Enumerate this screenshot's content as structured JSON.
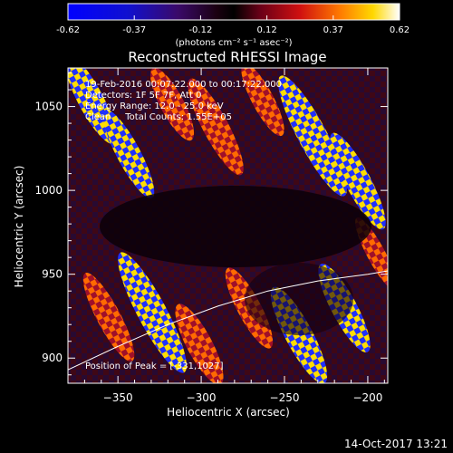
{
  "chart_data": {
    "type": "heatmap",
    "title": "Reconstructed RHESSI Image",
    "xlabel": "Heliocentric X (arcsec)",
    "ylabel": "Heliocentric Y (arcsec)",
    "xlim": [
      -380,
      -188
    ],
    "ylim": [
      885,
      1073
    ],
    "xticks": [
      -350,
      -300,
      -250,
      -200
    ],
    "yticks": [
      900,
      950,
      1000,
      1050
    ],
    "colorbar": {
      "ticks": [
        "-0.62",
        "-0.37",
        "-0.12",
        "0.12",
        "0.37",
        "0.62"
      ],
      "min": -0.62,
      "max": 0.62,
      "unit_label": "(photons cm⁻² s⁻¹ asec⁻²)"
    },
    "annotations": [
      "19-Feb-2016 00:07:22.000 to 00:17:22.000",
      "Detectors: 1F 5F 7F, Att 0",
      "Energy Range: 12.0 - 25.0 keV",
      "Clean     Total Counts: 1.55E+05"
    ],
    "peak_label": "Position of Peak = [-331,1027]",
    "limb_curve": {
      "x": [
        -380,
        -350,
        -320,
        -290,
        -260,
        -230,
        -200,
        -188
      ],
      "y": [
        893,
        907,
        920,
        931,
        940,
        946,
        950,
        952
      ]
    }
  },
  "footer": {
    "timestamp": "14-Oct-2017 13:21"
  }
}
